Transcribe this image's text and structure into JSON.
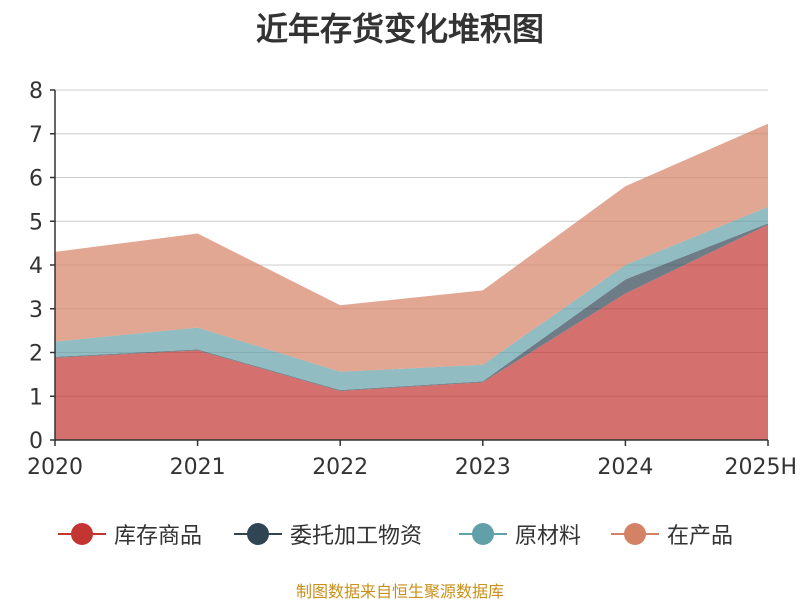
{
  "chart_data": {
    "type": "area",
    "stacked": true,
    "title": "近年存货变化堆积图",
    "categories": [
      "2020",
      "2021",
      "2022",
      "2023",
      "2024",
      "2025H"
    ],
    "ylim": [
      0,
      8
    ],
    "yticks": [
      0,
      1,
      2,
      3,
      4,
      5,
      6,
      7,
      8
    ],
    "grid": true,
    "legend_position": "bottom",
    "series": [
      {
        "name": "库存商品",
        "color": "#c23531",
        "values": [
          1.88,
          2.05,
          1.12,
          1.32,
          3.35,
          4.92
        ]
      },
      {
        "name": "委托加工物资",
        "color": "#2f4554",
        "values": [
          0.02,
          0.02,
          0.02,
          0.02,
          0.32,
          0.03
        ]
      },
      {
        "name": "原材料",
        "color": "#61a0a8",
        "values": [
          0.35,
          0.5,
          0.42,
          0.38,
          0.33,
          0.38
        ]
      },
      {
        "name": "在产品",
        "color": "#d48265",
        "values": [
          2.05,
          2.15,
          1.52,
          1.7,
          1.8,
          1.9
        ]
      }
    ]
  },
  "source_note": "制图数据来自恒生聚源数据库"
}
